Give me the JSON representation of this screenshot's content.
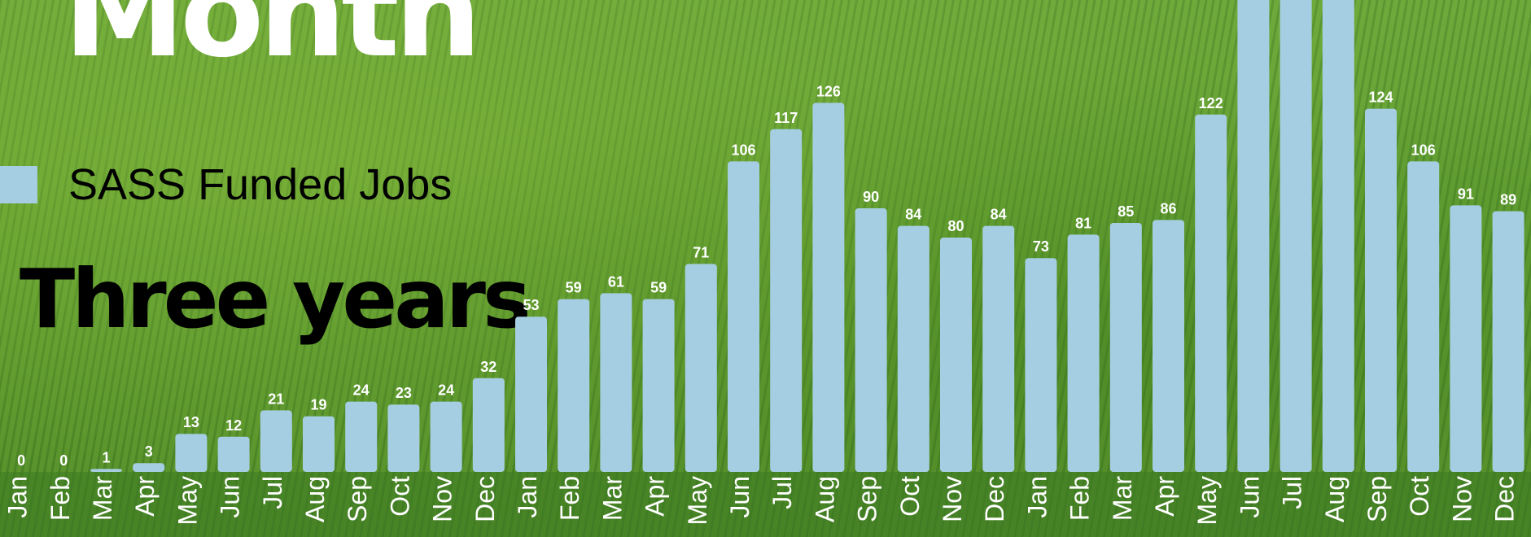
{
  "header": {
    "title": "Month",
    "subtitle": "Three years"
  },
  "legend": {
    "label": "SASS Funded Jobs",
    "color": "#a6cee3"
  },
  "chart_data": {
    "type": "bar",
    "categories": [
      "Jan",
      "Feb",
      "Mar",
      "Apr",
      "May",
      "Jun",
      "Jul",
      "Aug",
      "Sep",
      "Oct",
      "Nov",
      "Dec",
      "Jan",
      "Feb",
      "Mar",
      "Apr",
      "May",
      "Jun",
      "Jul",
      "Aug",
      "Sep",
      "Oct",
      "Nov",
      "Dec",
      "Jan",
      "Feb",
      "Mar",
      "Apr",
      "May",
      "Jun",
      "Jul",
      "Aug",
      "Sep",
      "Oct",
      "Nov",
      "Dec"
    ],
    "series": [
      {
        "name": "SASS Funded Jobs",
        "color": "#a6cee3",
        "values": [
          0,
          0,
          1,
          3,
          13,
          12,
          21,
          19,
          24,
          23,
          24,
          32,
          53,
          59,
          61,
          59,
          71,
          106,
          117,
          126,
          90,
          84,
          80,
          84,
          73,
          81,
          85,
          86,
          122,
          null,
          null,
          null,
          124,
          106,
          91,
          89
        ]
      }
    ],
    "title": "",
    "xlabel": "",
    "ylabel": "",
    "grid": false,
    "legend_position": "left"
  }
}
